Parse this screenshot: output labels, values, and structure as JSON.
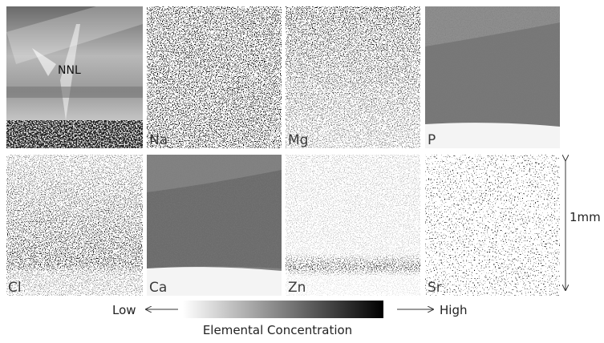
{
  "panels": [
    {
      "label": "NNL"
    },
    {
      "label": "Na"
    },
    {
      "label": "Mg"
    },
    {
      "label": "P"
    },
    {
      "label": "Cl"
    },
    {
      "label": "Ca"
    },
    {
      "label": "Zn"
    },
    {
      "label": "Sr"
    }
  ],
  "scale_bar": {
    "label": "1mm"
  },
  "colorbar": {
    "low": "Low",
    "high": "High",
    "title": "Elemental Concentration"
  }
}
